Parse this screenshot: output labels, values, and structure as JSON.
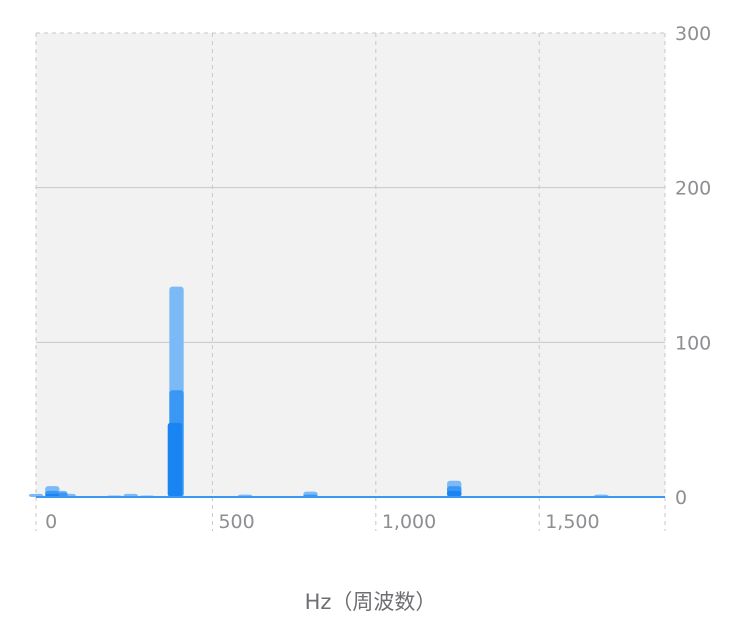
{
  "chart_data": {
    "type": "bar",
    "title": "",
    "xlabel": "Hz（周波数）",
    "ylabel": "",
    "xlim": [
      -40,
      1885
    ],
    "ylim": [
      0,
      300
    ],
    "x_ticks": [
      0,
      500,
      1000,
      1500
    ],
    "x_tick_labels": [
      "0",
      "500",
      "1,000",
      "1,500"
    ],
    "y_ticks": [
      0,
      100,
      200,
      300
    ],
    "y_tick_labels": [
      "0",
      "100",
      "200",
      "300"
    ],
    "y_axis_side": "right",
    "grid": true,
    "colors": {
      "plot_bg": "#f2f2f2",
      "bar_light": "#7bbaf6",
      "bar_mid": "#3a98f4",
      "bar_dark": "#1a84f2",
      "grid_solid": "#c7c7cc",
      "grid_dashed": "#c7c7cc"
    },
    "bar_width_hz": 50,
    "series": [
      {
        "color": "#7bbaf6",
        "x": [
          -40,
          10,
          35,
          60,
          200,
          250,
          300,
          390,
          600,
          800,
          1240,
          1690
        ],
        "values": [
          2,
          7,
          4,
          2,
          1,
          2,
          1,
          136,
          1.5,
          3.5,
          10.5,
          1.5
        ]
      },
      {
        "color": "#3a98f4",
        "x": [
          10,
          35,
          390,
          800,
          1240
        ],
        "values": [
          4,
          3,
          69,
          1.5,
          7
        ]
      },
      {
        "color": "#1a84f2",
        "x": [
          10,
          385,
          1240
        ],
        "values": [
          2,
          48,
          4
        ]
      }
    ]
  }
}
